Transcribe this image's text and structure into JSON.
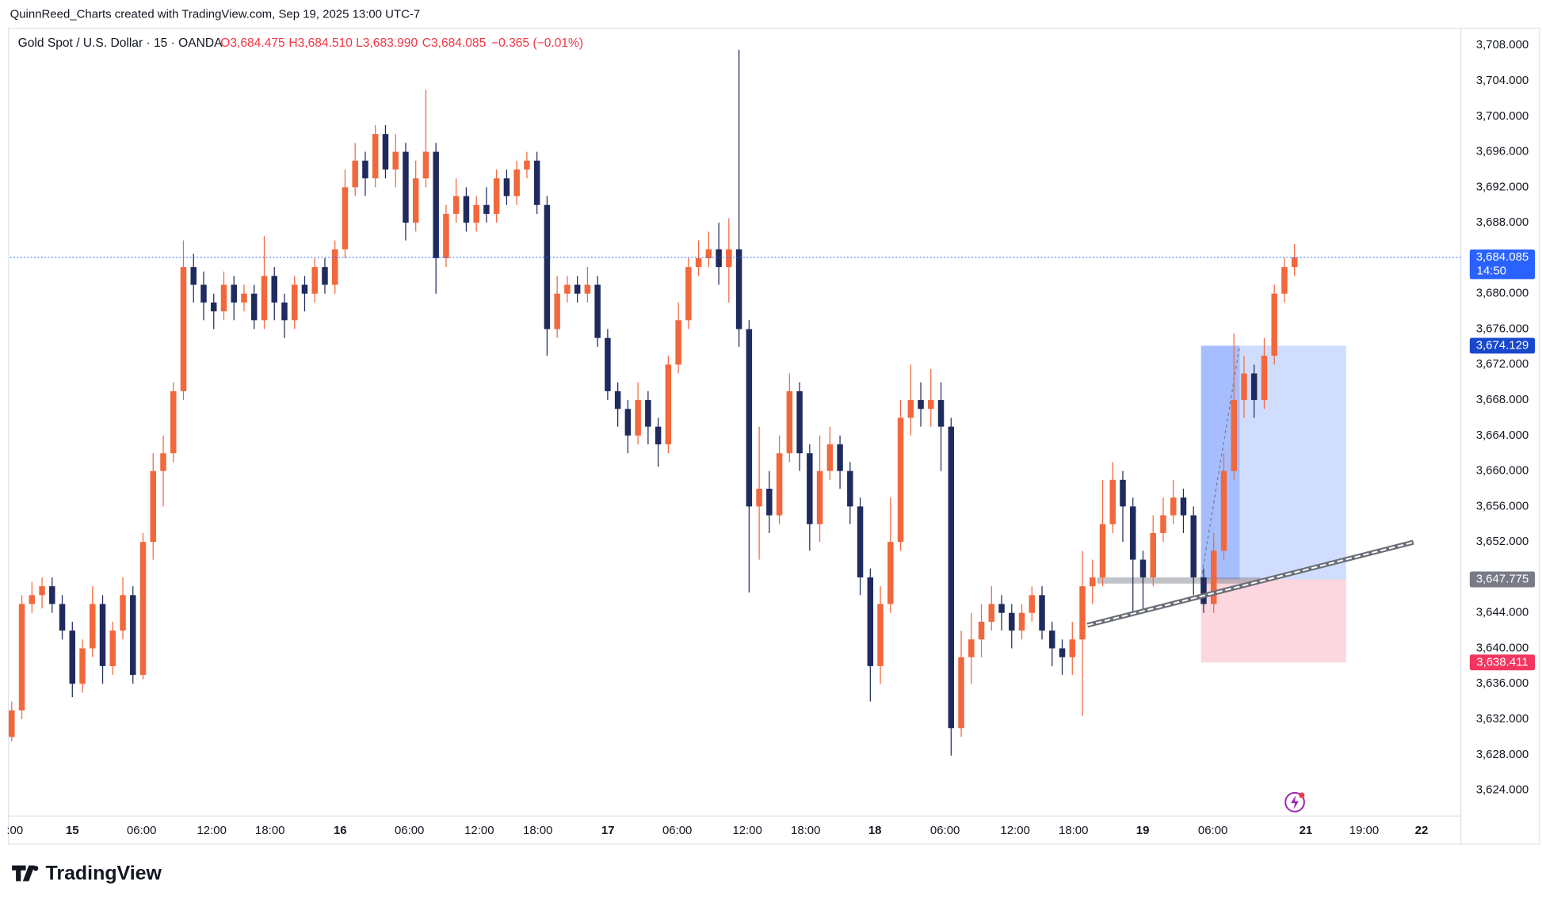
{
  "header": {
    "credit": "QuinnReed_Charts created with TradingView.com, Sep 19, 2025 13:00 UTC-7",
    "symbol": "Gold Spot / U.S. Dollar · 15 · OANDA",
    "legend": [
      "O3,684.475",
      "H3,684.510",
      "L3,683.990",
      "C3,684.085",
      "−0.365 (−0.01%)"
    ]
  },
  "footer": {
    "logo": "TradingView"
  },
  "chart_data": {
    "type": "candlestick",
    "up_color": "#f2683c",
    "down_color": "#1f2b5e",
    "grid": false,
    "ylim": [
      3621.2,
      3712.0
    ],
    "yticks": [
      {
        "value": 3624,
        "label": "3,624.000"
      },
      {
        "value": 3628,
        "label": "3,628.000"
      },
      {
        "value": 3632,
        "label": "3,632.000"
      },
      {
        "value": 3636,
        "label": "3,636.000"
      },
      {
        "value": 3640,
        "label": "3,640.000"
      },
      {
        "value": 3644,
        "label": "3,644.000"
      },
      {
        "value": 3652,
        "label": "3,652.000"
      },
      {
        "value": 3656,
        "label": "3,656.000"
      },
      {
        "value": 3660,
        "label": "3,660.000"
      },
      {
        "value": 3664,
        "label": "3,664.000"
      },
      {
        "value": 3668,
        "label": "3,668.000"
      },
      {
        "value": 3672,
        "label": "3,672.000"
      },
      {
        "value": 3676,
        "label": "3,676.000"
      },
      {
        "value": 3680,
        "label": "3,680.000"
      },
      {
        "value": 3688,
        "label": "3,688.000"
      },
      {
        "value": 3692,
        "label": "3,692.000"
      },
      {
        "value": 3696,
        "label": "3,696.000"
      },
      {
        "value": 3700,
        "label": "3,700.000"
      },
      {
        "value": 3704,
        "label": "3,704.000"
      },
      {
        "value": 3708,
        "label": "3,708.000"
      }
    ],
    "xlim": [
      -21.6,
      480.1
    ],
    "xticks": [
      {
        "value": -19.9,
        "label": ":00"
      },
      {
        "value": 0,
        "label": "15"
      },
      {
        "value": 24,
        "label": "06:00"
      },
      {
        "value": 48.3,
        "label": "12:00"
      },
      {
        "value": 68.5,
        "label": "18:00"
      },
      {
        "value": 92.8,
        "label": "16"
      },
      {
        "value": 116.8,
        "label": "06:00"
      },
      {
        "value": 141,
        "label": "12:00"
      },
      {
        "value": 161.3,
        "label": "18:00"
      },
      {
        "value": 185.6,
        "label": "17"
      },
      {
        "value": 209.6,
        "label": "06:00"
      },
      {
        "value": 233.9,
        "label": "12:00"
      },
      {
        "value": 254.1,
        "label": "18:00"
      },
      {
        "value": 278.1,
        "label": "18"
      },
      {
        "value": 302.4,
        "label": "06:00"
      },
      {
        "value": 326.7,
        "label": "12:00"
      },
      {
        "value": 346.9,
        "label": "18:00"
      },
      {
        "value": 370.9,
        "label": "19"
      },
      {
        "value": 395.2,
        "label": "06:00"
      },
      {
        "value": 427.4,
        "label": "21"
      },
      {
        "value": 447.6,
        "label": "19:00"
      },
      {
        "value": 467.5,
        "label": "22"
      }
    ],
    "x": [
      -21,
      -17.5,
      -14,
      -10.5,
      -7,
      -3.5,
      0,
      3.5,
      7,
      10.5,
      14,
      17.5,
      21,
      24.5,
      28,
      31.5,
      35,
      38.5,
      42,
      45.5,
      49,
      52.5,
      56,
      59.5,
      63,
      66.5,
      70,
      73.5,
      77,
      80.5,
      84,
      87.5,
      91,
      94.5,
      98,
      101.5,
      105,
      108.5,
      112,
      115.5,
      119,
      122.5,
      126,
      129.5,
      133,
      136.5,
      140,
      143.5,
      147,
      150.5,
      154,
      157.5,
      161,
      164.5,
      168,
      171.5,
      175,
      178.5,
      182,
      185.5,
      189,
      192.5,
      196,
      199.5,
      203,
      206.5,
      210,
      213.5,
      217,
      220.5,
      224,
      227.5,
      231,
      234.5,
      238,
      241.5,
      245,
      248.5,
      252,
      255.5,
      259,
      262.5,
      266,
      269.5,
      273,
      276.5,
      280,
      283.5,
      287,
      290.5,
      294,
      297.5,
      301,
      304.5,
      308,
      311.5,
      315,
      318.5,
      322,
      325.5,
      329,
      332.5,
      336,
      339.5,
      343,
      346.5,
      350,
      353.5,
      357,
      360.5,
      364,
      367.5,
      371,
      374.5,
      378,
      381.5,
      385,
      388.5,
      392,
      395.5,
      399,
      402.5,
      406,
      409.5,
      413,
      416.5,
      420,
      423.5
    ],
    "candles": [
      [
        3630,
        3634,
        3629.5,
        3633
      ],
      [
        3633,
        3646,
        3632,
        3645
      ],
      [
        3645,
        3647.5,
        3644,
        3646
      ],
      [
        3646,
        3648,
        3644.5,
        3647
      ],
      [
        3647,
        3648,
        3644,
        3645
      ],
      [
        3645,
        3646,
        3641,
        3642
      ],
      [
        3642,
        3643,
        3634.5,
        3636
      ],
      [
        3636,
        3641,
        3635,
        3640
      ],
      [
        3640,
        3647,
        3639,
        3645
      ],
      [
        3645,
        3646,
        3636,
        3638
      ],
      [
        3638,
        3643,
        3637,
        3642
      ],
      [
        3642,
        3648,
        3641,
        3646
      ],
      [
        3646,
        3647,
        3636,
        3637
      ],
      [
        3637,
        3653,
        3636.5,
        3652
      ],
      [
        3652,
        3662,
        3650,
        3660
      ],
      [
        3660,
        3664,
        3656,
        3662
      ],
      [
        3662,
        3670,
        3661,
        3669
      ],
      [
        3669,
        3686,
        3668,
        3683
      ],
      [
        3683,
        3684.5,
        3679,
        3681
      ],
      [
        3681,
        3682.5,
        3677,
        3679
      ],
      [
        3679,
        3680,
        3676,
        3678
      ],
      [
        3678,
        3682.5,
        3677,
        3681
      ],
      [
        3681,
        3682,
        3677,
        3679
      ],
      [
        3679,
        3681,
        3678,
        3680
      ],
      [
        3680,
        3681,
        3676,
        3677
      ],
      [
        3677,
        3686.5,
        3676,
        3682
      ],
      [
        3682,
        3683,
        3677,
        3679
      ],
      [
        3679,
        3680,
        3675,
        3677
      ],
      [
        3677,
        3682,
        3676,
        3681
      ],
      [
        3681,
        3682,
        3678,
        3680
      ],
      [
        3680,
        3684,
        3679,
        3683
      ],
      [
        3683,
        3684,
        3680,
        3681
      ],
      [
        3681,
        3686,
        3680,
        3685
      ],
      [
        3685,
        3694,
        3684,
        3692
      ],
      [
        3692,
        3697,
        3691,
        3695
      ],
      [
        3695,
        3696,
        3691,
        3693
      ],
      [
        3693,
        3699,
        3692,
        3698
      ],
      [
        3698,
        3699,
        3693,
        3694
      ],
      [
        3694,
        3698,
        3692,
        3696
      ],
      [
        3696,
        3697,
        3686,
        3688
      ],
      [
        3688,
        3695,
        3687,
        3693
      ],
      [
        3693,
        3703,
        3692,
        3696
      ],
      [
        3696,
        3697,
        3680,
        3684
      ],
      [
        3684,
        3690,
        3683,
        3689
      ],
      [
        3689,
        3693,
        3688,
        3691
      ],
      [
        3691,
        3692,
        3687,
        3688
      ],
      [
        3688,
        3691,
        3687,
        3690
      ],
      [
        3690,
        3692,
        3688,
        3689
      ],
      [
        3689,
        3694,
        3688,
        3693
      ],
      [
        3693,
        3694,
        3690,
        3691
      ],
      [
        3691,
        3695,
        3690,
        3694
      ],
      [
        3694,
        3696,
        3693,
        3695
      ],
      [
        3695,
        3696,
        3689,
        3690
      ],
      [
        3690,
        3691,
        3673,
        3676
      ],
      [
        3676,
        3682,
        3675,
        3680
      ],
      [
        3680,
        3682,
        3679,
        3681
      ],
      [
        3681,
        3682,
        3679,
        3680
      ],
      [
        3680,
        3683,
        3679,
        3681
      ],
      [
        3681,
        3682,
        3674,
        3675
      ],
      [
        3675,
        3676,
        3668,
        3669
      ],
      [
        3669,
        3670,
        3665,
        3667
      ],
      [
        3667,
        3668,
        3662,
        3664
      ],
      [
        3664,
        3670,
        3663,
        3668
      ],
      [
        3668,
        3669,
        3663,
        3665
      ],
      [
        3665,
        3666,
        3660.5,
        3663
      ],
      [
        3663,
        3673,
        3662,
        3672
      ],
      [
        3672,
        3679,
        3671,
        3677
      ],
      [
        3677,
        3684,
        3676,
        3683
      ],
      [
        3683,
        3686,
        3682,
        3684
      ],
      [
        3684,
        3687,
        3683,
        3685
      ],
      [
        3685,
        3688,
        3681,
        3683
      ],
      [
        3683,
        3688.5,
        3679,
        3685
      ],
      [
        3685,
        3707.5,
        3674,
        3676
      ],
      [
        3676,
        3677,
        3646.3,
        3656
      ],
      [
        3656,
        3665,
        3650,
        3658
      ],
      [
        3658,
        3660,
        3653,
        3655
      ],
      [
        3655,
        3664,
        3654,
        3662
      ],
      [
        3662,
        3671,
        3661,
        3669
      ],
      [
        3669,
        3670,
        3660,
        3662
      ],
      [
        3662,
        3663,
        3651,
        3654
      ],
      [
        3654,
        3664,
        3652,
        3660
      ],
      [
        3660,
        3665,
        3659,
        3663
      ],
      [
        3663,
        3664,
        3658,
        3660
      ],
      [
        3660,
        3661,
        3654,
        3656
      ],
      [
        3656,
        3657,
        3646,
        3648
      ],
      [
        3648,
        3649,
        3634,
        3638
      ],
      [
        3638,
        3647,
        3636,
        3645
      ],
      [
        3645,
        3657,
        3644,
        3652
      ],
      [
        3652,
        3668,
        3651,
        3666
      ],
      [
        3666,
        3672,
        3664,
        3668
      ],
      [
        3668,
        3670,
        3665,
        3667
      ],
      [
        3667,
        3671.5,
        3665,
        3668
      ],
      [
        3668,
        3670,
        3660,
        3665
      ],
      [
        3665,
        3666,
        3627.9,
        3631
      ],
      [
        3631,
        3642,
        3630,
        3639
      ],
      [
        3639,
        3644,
        3636,
        3641
      ],
      [
        3641,
        3645,
        3639,
        3643
      ],
      [
        3643,
        3647,
        3642,
        3645
      ],
      [
        3645,
        3646,
        3642,
        3644
      ],
      [
        3644,
        3645,
        3640,
        3642
      ],
      [
        3642,
        3645,
        3641,
        3644
      ],
      [
        3644,
        3647,
        3643,
        3646
      ],
      [
        3646,
        3647,
        3641,
        3642
      ],
      [
        3642,
        3643,
        3638,
        3640
      ],
      [
        3640,
        3641,
        3637,
        3639
      ],
      [
        3639,
        3643,
        3637,
        3641
      ],
      [
        3641,
        3651,
        3632.4,
        3647
      ],
      [
        3647,
        3650,
        3645,
        3648
      ],
      [
        3648,
        3659,
        3647,
        3654
      ],
      [
        3654,
        3661,
        3653,
        3659
      ],
      [
        3659,
        3660,
        3652,
        3656
      ],
      [
        3656,
        3657,
        3644,
        3650
      ],
      [
        3650,
        3651,
        3644,
        3648
      ],
      [
        3648,
        3655,
        3647,
        3653
      ],
      [
        3653,
        3657,
        3652,
        3655
      ],
      [
        3655,
        3659,
        3654,
        3657
      ],
      [
        3657,
        3658,
        3653,
        3655
      ],
      [
        3655,
        3656,
        3646,
        3648
      ],
      [
        3648,
        3649,
        3644,
        3645
      ],
      [
        3645,
        3653,
        3644,
        3651
      ],
      [
        3651,
        3662,
        3650,
        3660
      ],
      [
        3660,
        3675.5,
        3659,
        3668
      ],
      [
        3668,
        3673,
        3666,
        3671
      ],
      [
        3671,
        3672,
        3666,
        3668
      ],
      [
        3668,
        3675,
        3667,
        3673
      ],
      [
        3673,
        3681,
        3672,
        3680
      ],
      [
        3680,
        3684,
        3679,
        3683
      ],
      [
        3683,
        3685.6,
        3682,
        3684.085
      ]
    ],
    "position": {
      "entry": 3647.775,
      "target": 3674.129,
      "stop": 3638.411,
      "x": [
        391.1,
        441.4
      ],
      "filled_to": 404.5
    },
    "zone": {
      "x": [
        355.1,
        411.6
      ],
      "range": [
        3647.3,
        3648.0
      ]
    },
    "trendline": {
      "x": [
        351.7,
        464.7
      ],
      "values": [
        3642.6,
        3651.96
      ]
    },
    "countdown": "14:50",
    "price_labels": [
      {
        "value": 3684.085,
        "label": "3,684.085",
        "color": "#2962ff"
      },
      {
        "value": 3674.129,
        "label": "3,674.129",
        "color": "#1848cc"
      },
      {
        "value": 3647.775,
        "label": "3,647.775",
        "color": "#787b86"
      },
      {
        "value": 3638.411,
        "label": "3,638.411",
        "color": "#f23660"
      }
    ]
  }
}
